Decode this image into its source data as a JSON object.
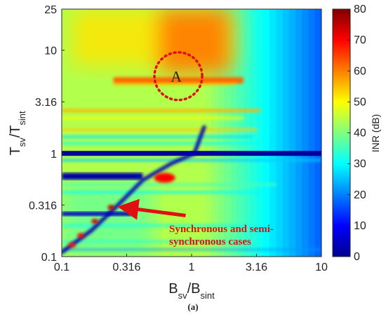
{
  "chart_data": {
    "type": "heatmap",
    "title": "",
    "caption": "(a)",
    "xscale": "log",
    "yscale": "log",
    "xlim": [
      0.1,
      10
    ],
    "ylim": [
      0.1,
      25
    ],
    "xticks": [
      0.1,
      0.316,
      1,
      3.16,
      10
    ],
    "yticks": [
      0.1,
      0.316,
      1,
      3.16,
      10,
      25
    ],
    "xtick_labels": [
      "0.1",
      "0.316",
      "1",
      "3.16",
      "10"
    ],
    "ytick_labels": [
      "0.1",
      "0.316",
      "1",
      "3.16",
      "10",
      "25"
    ],
    "xlabel": {
      "main": "B",
      "sub1": "sv",
      "sep": "/B",
      "sub2": "sint"
    },
    "ylabel": {
      "main": "T",
      "sub1": "sv",
      "sep": "/T",
      "sub2": "sint"
    },
    "colorbar": {
      "label": "INR (dB)",
      "range": [
        0,
        80
      ],
      "ticks": [
        0,
        10,
        20,
        30,
        40,
        50,
        60,
        70,
        80
      ],
      "tick_labels": [
        "0",
        "10",
        "20",
        "30",
        "40",
        "50",
        "60",
        "70",
        "80"
      ],
      "colormap": "jet"
    },
    "features": [
      {
        "type": "band",
        "value_db": 1,
        "x_range": [
          0.1,
          10
        ],
        "y": 1
      },
      {
        "type": "band",
        "value_db": 60,
        "x_range": [
          0.3,
          2.2
        ],
        "y": 5.2
      },
      {
        "type": "band",
        "value_db": 58,
        "x_range": [
          0.6,
          1.8
        ],
        "y": [
          8,
          25
        ]
      },
      {
        "type": "band",
        "value_db": 3,
        "x_range": [
          0.1,
          0.4
        ],
        "y": 0.6
      },
      {
        "type": "band",
        "value_db": 5,
        "x_range": [
          0.1,
          0.35
        ],
        "y": 0.26
      },
      {
        "type": "peak",
        "value_db": 70,
        "x": 0.62,
        "y": 0.58
      },
      {
        "type": "peak",
        "value_db": 75,
        "x": 0.24,
        "y": 0.3
      },
      {
        "type": "peak",
        "value_db": 73,
        "x": 0.18,
        "y": 0.22
      },
      {
        "type": "peak",
        "value_db": 70,
        "x": 0.14,
        "y": 0.16
      },
      {
        "type": "peak",
        "value_db": 68,
        "x": 0.12,
        "y": 0.13
      }
    ],
    "annotations": [
      {
        "type": "circle",
        "label": "A",
        "x": 0.79,
        "y": 5.6,
        "style": "dotted",
        "color": "#e01010"
      },
      {
        "type": "arrow",
        "text_lines": [
          "Synchronous and semi-",
          "synchronous cases"
        ],
        "color": "#e01010",
        "from": [
          0.9,
          0.25
        ],
        "to": [
          0.28,
          0.3
        ]
      }
    ]
  }
}
